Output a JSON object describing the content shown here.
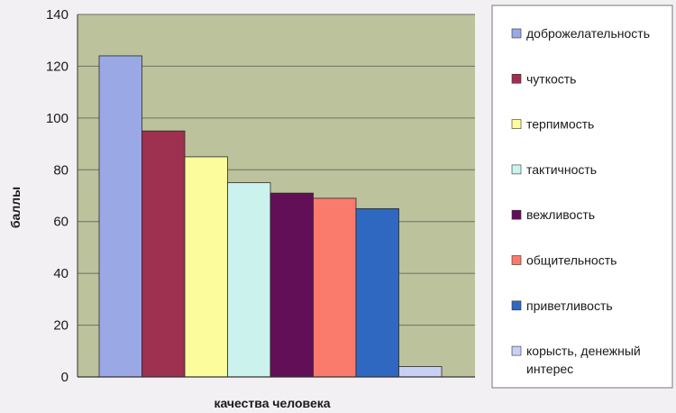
{
  "chart_data": {
    "type": "bar",
    "categories": [
      "доброжелательность",
      "чуткость",
      "терпимость",
      "тактичность",
      "вежливость",
      "общительность",
      "приветливость",
      "корысть, денежный интерес"
    ],
    "values": [
      124,
      95,
      85,
      75,
      71,
      69,
      65,
      4
    ],
    "colors": [
      "#9aa8e6",
      "#9e3050",
      "#fcfc9c",
      "#ccf2ee",
      "#620f58",
      "#fa7a6c",
      "#2e68c0",
      "#c8d0f4"
    ],
    "xlabel": "качества человека",
    "ylabel": "баллы",
    "ylim": [
      0,
      140
    ],
    "yticks": [
      0,
      20,
      40,
      60,
      80,
      100,
      120,
      140
    ],
    "grid": true,
    "legend_position": "right",
    "legend": [
      {
        "lines": [
          "доброжелательность"
        ]
      },
      {
        "lines": [
          "чуткость"
        ]
      },
      {
        "lines": [
          "терпимость"
        ]
      },
      {
        "lines": [
          "тактичность"
        ]
      },
      {
        "lines": [
          "вежливость"
        ]
      },
      {
        "lines": [
          "общительность"
        ]
      },
      {
        "lines": [
          "приветливость"
        ]
      },
      {
        "lines": [
          "корысть, денежный",
          "интерес"
        ]
      }
    ],
    "plot_background": "#bcc29c",
    "legend_background": "#ffffff"
  }
}
